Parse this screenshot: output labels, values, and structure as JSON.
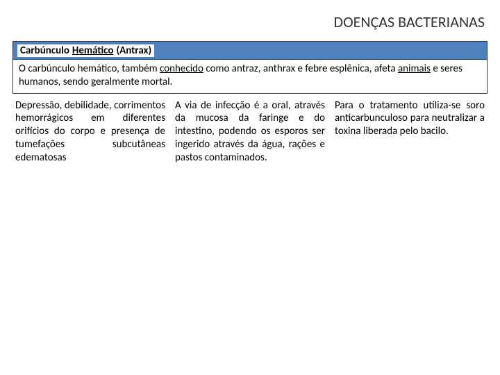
{
  "title": "DOENÇAS BACTERIANAS",
  "header_plain": "Carbúnculo ",
  "header_underline": "Hemático",
  "header_rest": " (Antrax)",
  "intro_parts": {
    "p1": "O carbúnculo hemático, também ",
    "u1": "conhecido",
    "p2": " como antraz, anthrax e febre esplênica, afeta ",
    "u2": "animais",
    "p3": " e seres humanos, sendo geralmente mortal."
  },
  "col1": "Depressão, debilidade, corrimentos hemorrágicos em diferentes orifícios do corpo e presença de tumefações subcutâneas edematosas",
  "col2": "A via de infecção é a oral, através da mucosa da faringe e do intestino, podendo os esporos ser ingerido através da água, rações e pastos contaminados.",
  "col3": "Para o tratamento utiliza-se soro anticarbunculoso para neutralizar a toxina liberada pelo bacilo.",
  "colors": {
    "header_bg": "#4f81bd",
    "border": "#333333",
    "text": "#000000",
    "bg": "#ffffff"
  },
  "fontsize": {
    "title": 22,
    "header": 15,
    "body": 15
  }
}
